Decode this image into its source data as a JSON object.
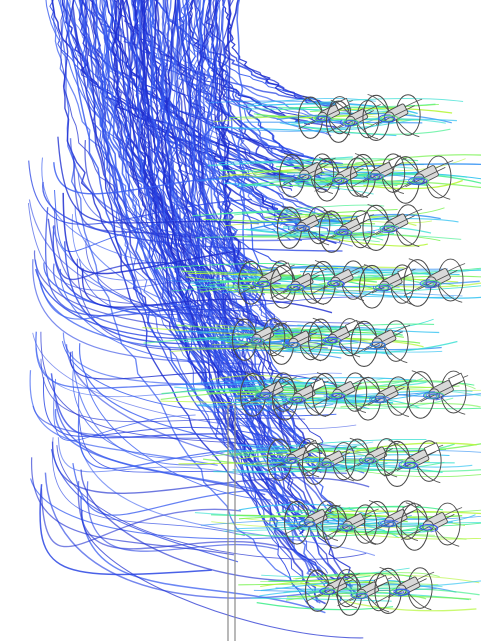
{
  "image": {
    "subject": "streamline-visualization",
    "background_color": "#ffffff"
  },
  "visual": {
    "streamline_palette": [
      "#1f2fd0",
      "#2a45e3",
      "#3a5ef0",
      "#2d8ef3",
      "#31c2f1",
      "#39e0d2",
      "#46ef8f",
      "#77f24f",
      "#b6f63a"
    ],
    "hardware_stroke": "#4b4b4b",
    "hardware_fill": "#d8d8d8",
    "mast_color": "#8a8a8a",
    "swirl_blue": "#2f57ef",
    "swirl_green": "#44e66a"
  },
  "elements": {
    "streamlines": "flow-streamlines",
    "rotor_array": "rotor-assembly-array",
    "mast": "vertical-support-mast"
  }
}
